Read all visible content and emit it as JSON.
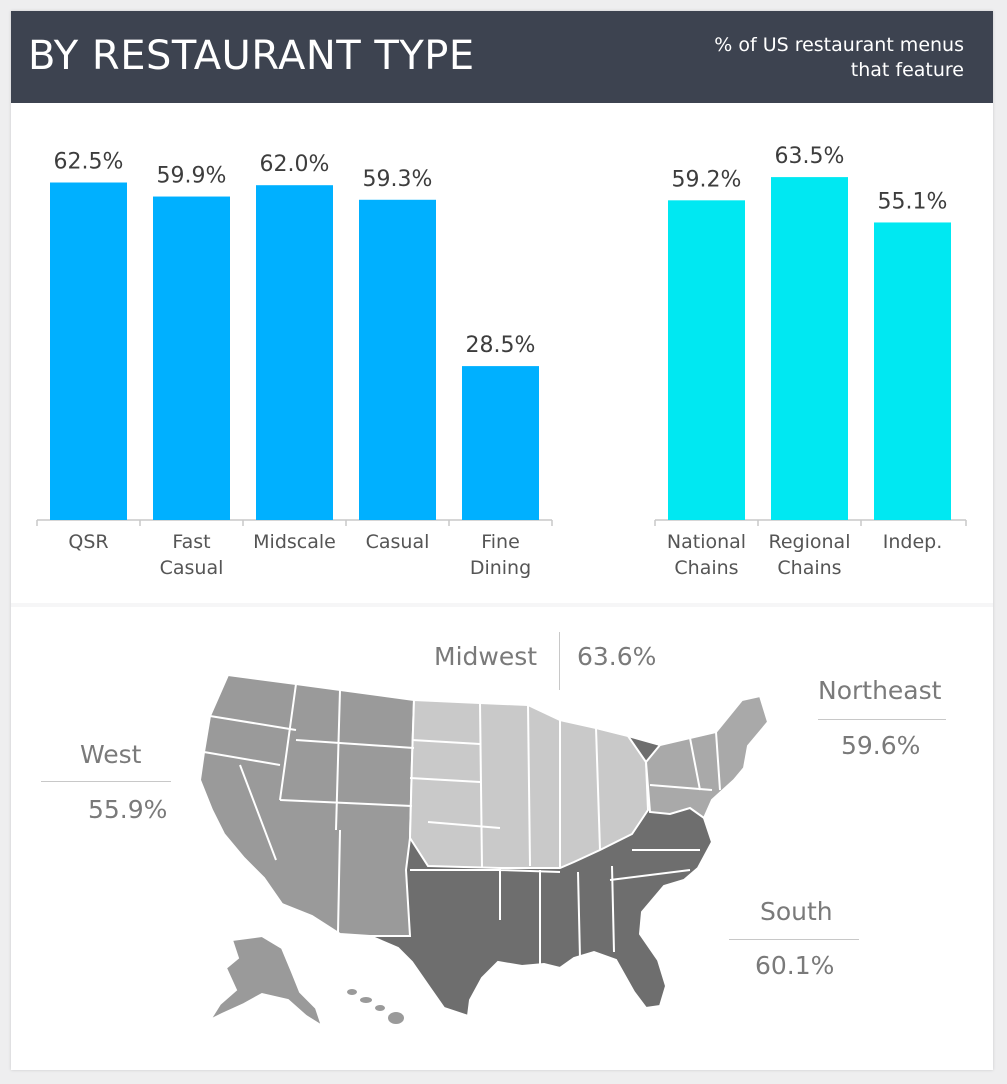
{
  "header": {
    "title": "BY RESTAURANT TYPE",
    "subtitle_line1": "% of US restaurant menus",
    "subtitle_line2": "that feature"
  },
  "colors": {
    "segment_bar": "#00b0ff",
    "ownership_bar": "#00e8f2",
    "west": "#9a9a9a",
    "midwest": "#c9c9c9",
    "northeast": "#a9a9a9",
    "south": "#6e6e6e"
  },
  "chart_data": {
    "type": "bar",
    "title": "",
    "xlabel": "",
    "ylabel": "",
    "ylim": [
      0,
      70
    ],
    "grid": false,
    "categories": [
      "QSR",
      "Fast Casual",
      "Midscale",
      "Casual",
      "Fine Dining",
      "National Chains",
      "Regional Chains",
      "Indep."
    ],
    "category_lines": [
      [
        "QSR"
      ],
      [
        "Fast",
        "Casual"
      ],
      [
        "Midscale"
      ],
      [
        "Casual"
      ],
      [
        "Fine",
        "Dining"
      ],
      [
        "National",
        "Chains"
      ],
      [
        "Regional",
        "Chains"
      ],
      [
        "Indep."
      ]
    ],
    "values": [
      62.5,
      59.9,
      62.0,
      59.3,
      28.5,
      59.2,
      63.5,
      55.1
    ],
    "value_labels": [
      "62.5%",
      "59.9%",
      "62.0%",
      "59.3%",
      "28.5%",
      "59.2%",
      "63.5%",
      "55.1%"
    ],
    "groups": [
      "segment",
      "segment",
      "segment",
      "segment",
      "segment",
      "ownership",
      "ownership",
      "ownership"
    ]
  },
  "regions": {
    "west": {
      "name": "West",
      "value": "55.9%"
    },
    "midwest": {
      "name": "Midwest",
      "value": "63.6%"
    },
    "northeast": {
      "name": "Northeast",
      "value": "59.6%"
    },
    "south": {
      "name": "South",
      "value": "60.1%"
    }
  }
}
